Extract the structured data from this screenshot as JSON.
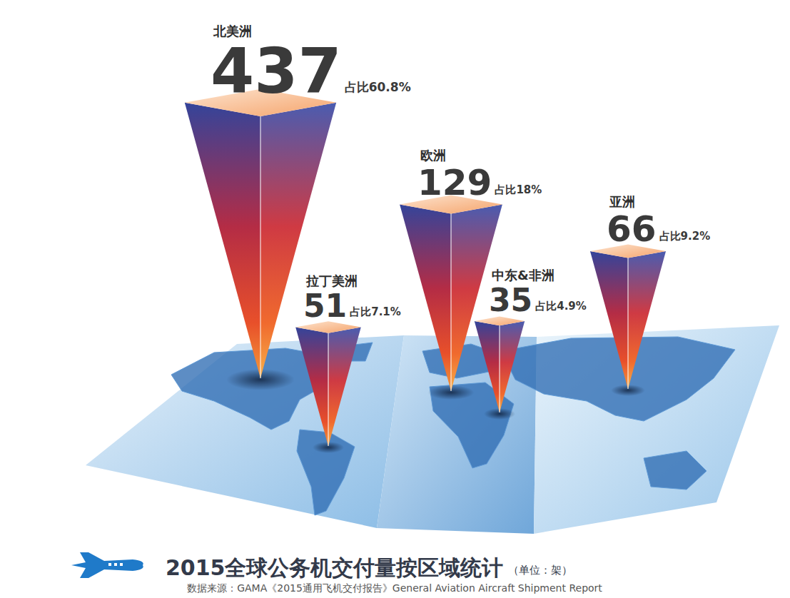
{
  "chart_data": {
    "type": "bar",
    "title": "2015全球公务机交付量按区域统计",
    "unit_label": "（单位：架）",
    "source": "数据来源：GAMA《2015通用飞机交付报告》General Aviation Aircraft Shipment Report",
    "categories": [
      "北美洲",
      "欧洲",
      "亚洲",
      "拉丁美洲",
      "中东&非洲"
    ],
    "values": [
      437,
      129,
      66,
      51,
      35
    ],
    "share_labels": [
      "占比60.8%",
      "占比18%",
      "占比9.2%",
      "占比7.1%",
      "占比4.9%"
    ],
    "ylim": [
      10,
      500
    ],
    "log": "y",
    "tick_labels": false,
    "data_labels": true
  }
}
